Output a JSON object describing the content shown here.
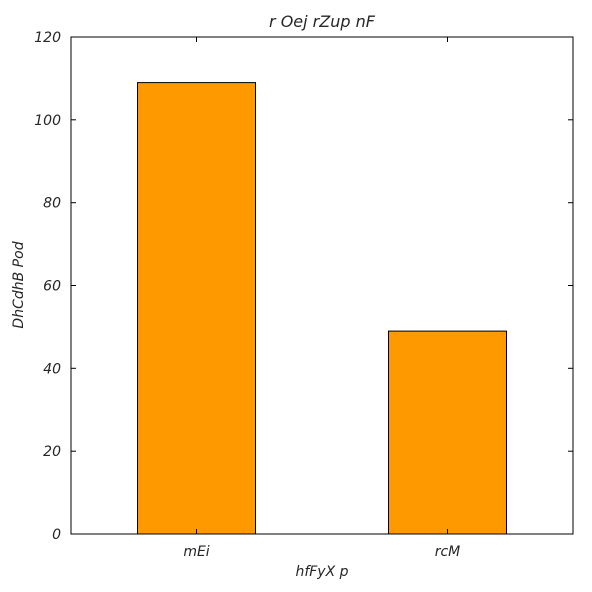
{
  "chart_data": {
    "type": "bar",
    "title": "r Oej rZup nF",
    "xlabel": "hfFyX p",
    "ylabel": "DhCdhB  Pod",
    "categories": [
      "mEi",
      "rcM"
    ],
    "values": [
      109,
      49
    ],
    "ylim": [
      0,
      120
    ],
    "yticks": [
      0,
      20,
      40,
      60,
      80,
      100,
      120
    ],
    "bar_color": "#ff9900",
    "grid": false,
    "legend": "none"
  }
}
